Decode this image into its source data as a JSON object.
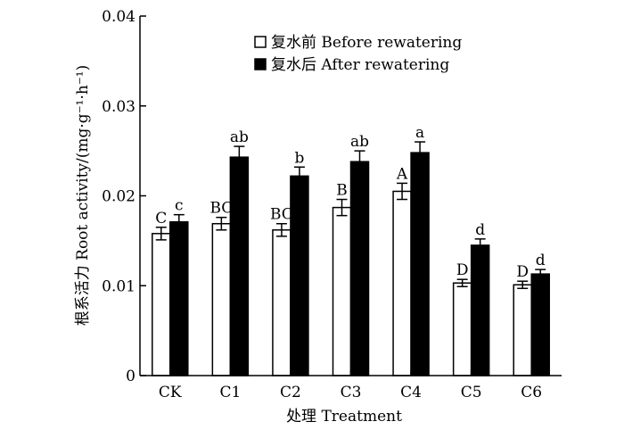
{
  "chart_data": {
    "type": "bar",
    "title": "",
    "xlabel": "处理 Treatment",
    "ylabel": "根系活力 Root activity/(mg·g⁻¹·h⁻¹)",
    "ylim": [
      0,
      0.04
    ],
    "yticks": [
      {
        "value": 0,
        "label": "0"
      },
      {
        "value": 0.01,
        "label": "0.01"
      },
      {
        "value": 0.02,
        "label": "0.02"
      },
      {
        "value": 0.03,
        "label": "0.03"
      },
      {
        "value": 0.04,
        "label": "0.04"
      }
    ],
    "grid": false,
    "legend_position": "top-right",
    "categories": [
      "CK",
      "C1",
      "C2",
      "C3",
      "C4",
      "C5",
      "C6"
    ],
    "series": [
      {
        "name": "复水前 Before rewatering",
        "fill": "#ffffff",
        "values": [
          0.0158,
          0.0169,
          0.0162,
          0.0187,
          0.0205,
          0.0103,
          0.0101
        ],
        "errors": [
          0.0007,
          0.0007,
          0.0007,
          0.0009,
          0.0009,
          0.0004,
          0.0004
        ],
        "letters": [
          "C",
          "BC",
          "BC",
          "B",
          "A",
          "D",
          "D"
        ]
      },
      {
        "name": "复水后 After rewatering",
        "fill": "#000000",
        "values": [
          0.0171,
          0.0243,
          0.0222,
          0.0238,
          0.0248,
          0.0145,
          0.0113
        ],
        "errors": [
          0.0008,
          0.0012,
          0.001,
          0.0012,
          0.0012,
          0.0007,
          0.0005
        ],
        "letters": [
          "c",
          "ab",
          "b",
          "ab",
          "a",
          "d",
          "d"
        ]
      }
    ]
  }
}
